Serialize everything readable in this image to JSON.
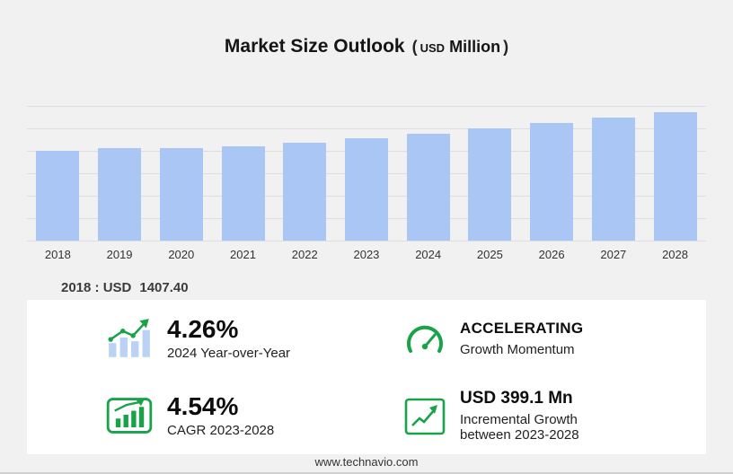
{
  "title": {
    "main": "Market Size Outlook",
    "open_paren": "(",
    "unit_small": "USD",
    "unit_rest": "Million",
    "close_paren": ")"
  },
  "chart_data": {
    "type": "bar",
    "title": "Market Size Outlook (USD Million)",
    "categories": [
      "2018",
      "2019",
      "2020",
      "2021",
      "2022",
      "2023",
      "2024",
      "2025",
      "2026",
      "2027",
      "2028"
    ],
    "values": [
      1407.4,
      1445.2,
      1437.9,
      1470.3,
      1532.0,
      1605.6,
      1674.0,
      1751.0,
      1831.6,
      1915.9,
      2004.7
    ],
    "xlabel": "",
    "ylabel": "",
    "unit": "USD Million",
    "ylim": [
      0,
      2100
    ],
    "grid": true,
    "legend": "none",
    "bar_color": "#a9c6f4",
    "gridline_color": "#dedede"
  },
  "base_year": {
    "label": "2018 : USD",
    "value": "1407.40"
  },
  "stats": [
    {
      "id": "yoy",
      "icon": "yoy-bar-chart-icon",
      "value": "4.26%",
      "label": "2024 Year-over-Year"
    },
    {
      "id": "momentum",
      "icon": "speedometer-icon",
      "value": "ACCELERATING",
      "label": "Growth Momentum"
    },
    {
      "id": "cagr",
      "icon": "cagr-chart-icon",
      "value": "4.54%",
      "label": "CAGR 2023-2028"
    },
    {
      "id": "incremental",
      "icon": "incremental-growth-icon",
      "value": "USD 399.1 Mn",
      "label": "Incremental Growth between 2023-2028"
    }
  ],
  "colors": {
    "accent_green": "#18a349",
    "bar_blue": "#a9c6f4",
    "icon_bar_blue": "#b9d2f6",
    "background": "#f1f1f1",
    "panel": "#ffffff"
  },
  "footer": {
    "website": "www.technavio.com"
  }
}
